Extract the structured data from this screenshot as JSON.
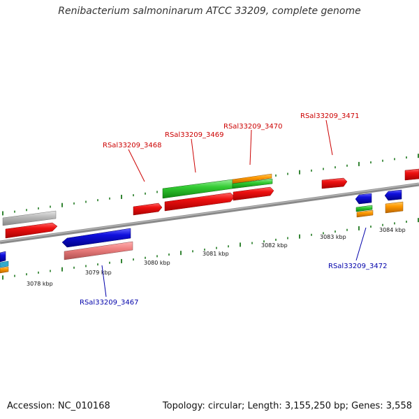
{
  "title": "Renibacterium salmoninarum ATCC 33209, complete genome",
  "footer": {
    "accession": "Accession: NC_010168",
    "summary": "Topology: circular; Length: 3,155,250 bp; Genes: 3,558"
  },
  "ticks": [
    "3078 kbp",
    "3079 kbp",
    "3080 kbp",
    "3081 kbp",
    "3082 kbp",
    "3083 kbp",
    "3084 kbp"
  ],
  "gene_labels": {
    "g3467": "RSal33209_3467",
    "g3468": "RSal33209_3468",
    "g3469": "RSal33209_3469",
    "g3470": "RSal33209_3470",
    "g3471": "RSal33209_3471",
    "g3472": "RSal33209_3472"
  },
  "colors": {
    "forward_label": "#cc0000",
    "reverse_label": "#0000aa",
    "red": "#ee1111",
    "pink": "#ee8080",
    "blue": "#1010dd",
    "green": "#33cc33",
    "orange": "#ff9900",
    "gray": "#bbbbbb",
    "backbone": "#888888",
    "tick": "#006600"
  }
}
